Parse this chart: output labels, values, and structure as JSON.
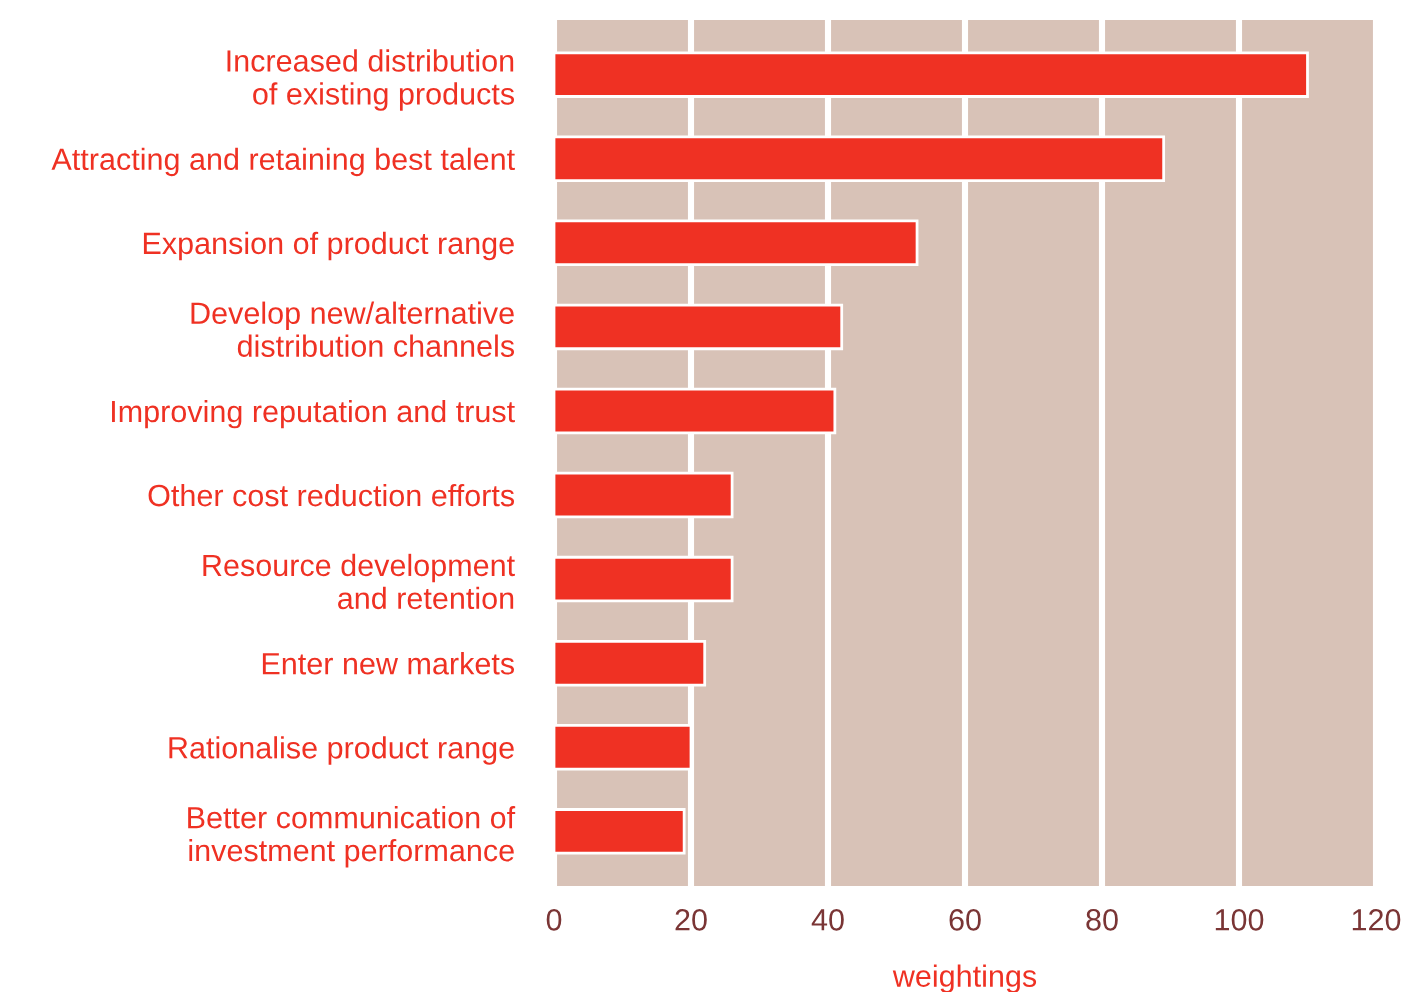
{
  "chart_data": {
    "type": "bar",
    "orientation": "horizontal",
    "xlabel": "weightings",
    "categories": [
      "Increased distribution\nof existing products",
      "Attracting and retaining best talent",
      "Expansion of product range",
      "Develop new/alternative\ndistribution channels",
      "Improving reputation and trust",
      "Other cost reduction efforts",
      "Resource development\nand retention",
      "Enter new markets",
      "Rationalise product range",
      "Better communication of\ninvestment performance"
    ],
    "values": [
      110,
      89,
      53,
      42,
      41,
      26,
      26,
      22,
      20,
      19
    ],
    "color": "#ef3123",
    "xlim": [
      0,
      120
    ],
    "xticks": [
      0,
      20,
      40,
      60,
      80,
      100,
      120
    ],
    "grid": "x",
    "legend": false
  }
}
